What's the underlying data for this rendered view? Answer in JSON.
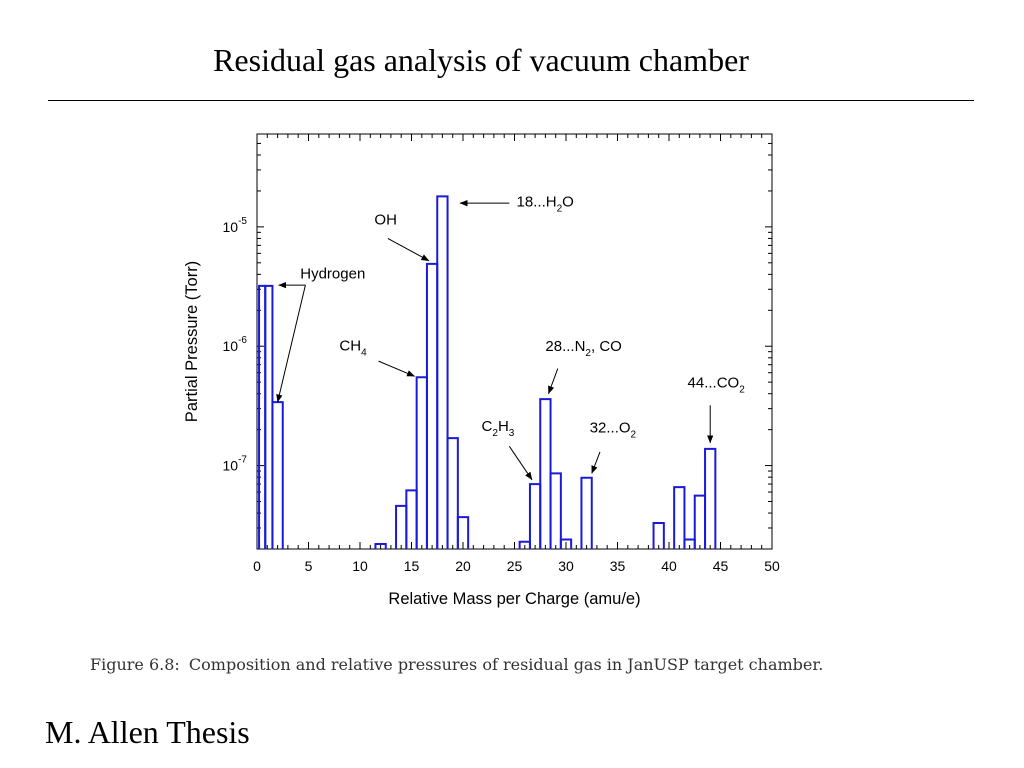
{
  "slide": {
    "title": "Residual gas analysis of vacuum chamber",
    "caption_label": "Figure 6.8:",
    "caption_text": "Composition and relative pressures of residual gas in JanUSP target chamber.",
    "author": "M. Allen Thesis"
  },
  "chart_data": {
    "type": "line",
    "step": true,
    "title": "",
    "xlabel": "Relative Mass per Charge  (amu/e)",
    "ylabel": "Partial Pressure (Torr)",
    "xlim": [
      0,
      50
    ],
    "ylim": [
      2e-08,
      6e-05
    ],
    "yscale": "log",
    "xticks": [
      0,
      5,
      10,
      15,
      20,
      25,
      30,
      35,
      40,
      45,
      50
    ],
    "yticks": [
      {
        "value": 1e-07,
        "base": "10",
        "exp": "-7"
      },
      {
        "value": 1e-06,
        "base": "10",
        "exp": "-6"
      },
      {
        "value": 1e-05,
        "base": "10",
        "exp": "-5"
      }
    ],
    "grid": false,
    "series_color": "#1a1adb",
    "bins": [
      {
        "x0": 0.2,
        "x1": 0.8,
        "y": 3.2e-06
      },
      {
        "x0": 0.8,
        "x1": 1.5,
        "y": 3.2e-06
      },
      {
        "x0": 1.5,
        "x1": 2.5,
        "y": 3.4e-07
      },
      {
        "x0": 11.5,
        "x1": 12.5,
        "y": 2.2e-08
      },
      {
        "x0": 13.5,
        "x1": 14.5,
        "y": 4.6e-08
      },
      {
        "x0": 14.5,
        "x1": 15.5,
        "y": 6.2e-08
      },
      {
        "x0": 15.5,
        "x1": 16.5,
        "y": 5.5e-07
      },
      {
        "x0": 16.5,
        "x1": 17.5,
        "y": 4.9e-06
      },
      {
        "x0": 17.5,
        "x1": 18.5,
        "y": 1.8e-05
      },
      {
        "x0": 18.5,
        "x1": 19.5,
        "y": 1.7e-07
      },
      {
        "x0": 19.5,
        "x1": 20.5,
        "y": 3.7e-08
      },
      {
        "x0": 25.5,
        "x1": 26.5,
        "y": 2.3e-08
      },
      {
        "x0": 26.5,
        "x1": 27.5,
        "y": 7e-08
      },
      {
        "x0": 27.5,
        "x1": 28.5,
        "y": 3.6e-07
      },
      {
        "x0": 28.5,
        "x1": 29.5,
        "y": 8.6e-08
      },
      {
        "x0": 29.5,
        "x1": 30.5,
        "y": 2.4e-08
      },
      {
        "x0": 31.5,
        "x1": 32.5,
        "y": 7.9e-08
      },
      {
        "x0": 38.5,
        "x1": 39.5,
        "y": 3.3e-08
      },
      {
        "x0": 40.5,
        "x1": 41.5,
        "y": 6.6e-08
      },
      {
        "x0": 41.5,
        "x1": 42.5,
        "y": 2.4e-08
      },
      {
        "x0": 42.5,
        "x1": 43.5,
        "y": 5.6e-08
      },
      {
        "x0": 43.5,
        "x1": 44.5,
        "y": 1.38e-07
      }
    ],
    "annotations": [
      {
        "name": "hydrogen",
        "parts": [
          {
            "t": "Hydrogen"
          }
        ],
        "tx": 4.2,
        "ty": 3.7e-06,
        "anchor": "start",
        "arrows": [
          {
            "x1": 4.7,
            "y1": 3.25e-06,
            "x2": 2.1,
            "y2": 3.25e-06
          },
          {
            "x1": 4.7,
            "y1": 3.25e-06,
            "x2": 2.0,
            "y2": 3.4e-07
          }
        ]
      },
      {
        "name": "oh",
        "parts": [
          {
            "t": "OH"
          }
        ],
        "tx": 11.4,
        "ty": 1.05e-05,
        "anchor": "start",
        "arrows": [
          {
            "x1": 12.7,
            "y1": 8e-06,
            "x2": 16.7,
            "y2": 5.2e-06
          }
        ]
      },
      {
        "name": "ch4",
        "parts": [
          {
            "t": "CH"
          },
          {
            "t": "4",
            "sub": true
          }
        ],
        "tx": 8.0,
        "ty": 9.2e-07,
        "anchor": "start",
        "arrows": [
          {
            "x1": 11.8,
            "y1": 7.5e-07,
            "x2": 15.3,
            "y2": 5.6e-07
          }
        ]
      },
      {
        "name": "h2o",
        "parts": [
          {
            "t": "18...H"
          },
          {
            "t": "2",
            "sub": true
          },
          {
            "t": "O"
          }
        ],
        "tx": 25.2,
        "ty": 1.48e-05,
        "anchor": "start",
        "arrows": [
          {
            "x1": 24.5,
            "y1": 1.58e-05,
            "x2": 19.7,
            "y2": 1.58e-05
          }
        ]
      },
      {
        "name": "n2-co",
        "parts": [
          {
            "t": "28...N"
          },
          {
            "t": "2",
            "sub": true
          },
          {
            "t": ", CO"
          }
        ],
        "tx": 28.0,
        "ty": 9.1e-07,
        "anchor": "start",
        "arrows": [
          {
            "x1": 29.2,
            "y1": 6.5e-07,
            "x2": 28.3,
            "y2": 4e-07
          }
        ]
      },
      {
        "name": "c2h3",
        "parts": [
          {
            "t": "C"
          },
          {
            "t": "2",
            "sub": true
          },
          {
            "t": "H"
          },
          {
            "t": "3",
            "sub": true
          }
        ],
        "tx": 21.8,
        "ty": 1.95e-07,
        "anchor": "start",
        "arrows": [
          {
            "x1": 24.5,
            "y1": 1.45e-07,
            "x2": 26.7,
            "y2": 7.6e-08
          }
        ]
      },
      {
        "name": "o2",
        "parts": [
          {
            "t": "32...O"
          },
          {
            "t": "2",
            "sub": true
          }
        ],
        "tx": 32.3,
        "ty": 1.9e-07,
        "anchor": "start",
        "arrows": [
          {
            "x1": 33.3,
            "y1": 1.3e-07,
            "x2": 32.5,
            "y2": 8.6e-08
          }
        ]
      },
      {
        "name": "co2",
        "parts": [
          {
            "t": "44...CO"
          },
          {
            "t": "2",
            "sub": true
          }
        ],
        "tx": 41.8,
        "ty": 4.5e-07,
        "anchor": "start",
        "arrows": [
          {
            "x1": 44.0,
            "y1": 3.2e-07,
            "x2": 44.0,
            "y2": 1.55e-07
          }
        ]
      }
    ]
  }
}
